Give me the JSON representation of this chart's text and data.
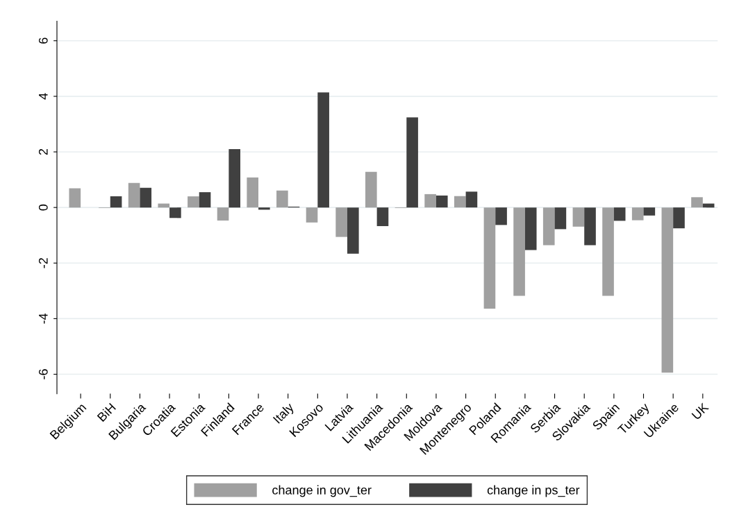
{
  "chart_data": {
    "type": "bar",
    "categories": [
      "Belgium",
      "BiH",
      "Bulgaria",
      "Croatia",
      "Estonia",
      "Finland",
      "France",
      "Italy",
      "Kosovo",
      "Latvia",
      "Lithuania",
      "Macedonia",
      "Moldova",
      "Montenegro",
      "Poland",
      "Romania",
      "Serbia",
      "Slovakia",
      "Spain",
      "Turkey",
      "Ukraine",
      "UK"
    ],
    "series": [
      {
        "name": "change in gov_ter",
        "color": "#a0a0a0",
        "values": [
          0.69,
          -0.02,
          0.88,
          0.14,
          0.4,
          -0.47,
          1.08,
          0.61,
          -0.54,
          -1.06,
          1.28,
          -0.02,
          0.48,
          0.41,
          -3.64,
          -3.18,
          -1.36,
          -0.69,
          -3.18,
          -0.46,
          -5.94,
          0.37
        ]
      },
      {
        "name": "change in ps_ter",
        "color": "#404040",
        "values": [
          null,
          0.4,
          0.71,
          -0.38,
          0.55,
          2.1,
          -0.08,
          0.03,
          4.14,
          -1.66,
          -0.67,
          3.24,
          0.43,
          0.57,
          -0.63,
          -1.53,
          -0.78,
          -1.36,
          -0.48,
          -0.29,
          -0.75,
          0.14
        ]
      }
    ],
    "ylim": [
      -6.7,
      6.7
    ],
    "yticks": [
      -6,
      -4,
      -2,
      0,
      2,
      4,
      6
    ],
    "grid": "y",
    "legend": "bottom"
  }
}
